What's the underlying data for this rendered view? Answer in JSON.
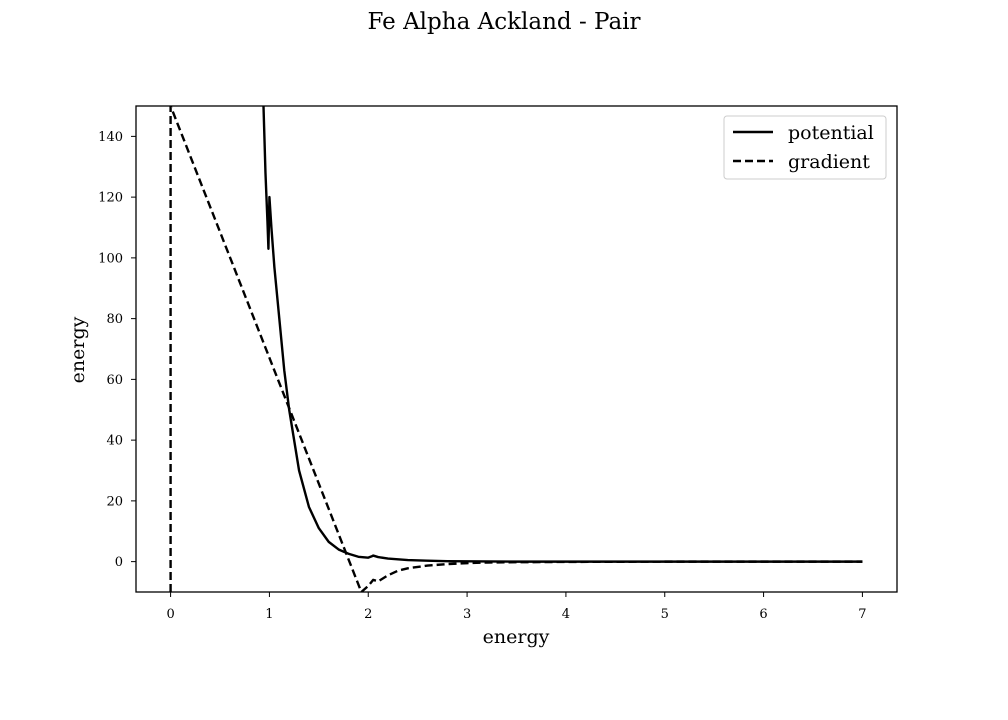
{
  "chart_data": {
    "type": "line",
    "title": "Fe Alpha Ackland - Pair",
    "xlabel": "energy",
    "ylabel": "energy",
    "xlim": [
      -0.35,
      7.35
    ],
    "ylim": [
      -10,
      150
    ],
    "xticks": [
      "0",
      "1",
      "2",
      "3",
      "4",
      "5",
      "6",
      "7"
    ],
    "yticks": [
      "0",
      "20",
      "40",
      "60",
      "80",
      "100",
      "120",
      "140"
    ],
    "legend_position": "top-right",
    "series": [
      {
        "name": "potential",
        "style": "solid",
        "color": "#000000",
        "x": [
          0.94,
          0.96,
          0.98,
          0.99,
          1.0,
          1.02,
          1.05,
          1.1,
          1.15,
          1.2,
          1.3,
          1.4,
          1.5,
          1.6,
          1.7,
          1.8,
          1.9,
          2.0,
          2.04,
          2.05,
          2.1,
          2.2,
          2.4,
          2.6,
          2.8,
          3.0,
          3.5,
          4.0,
          5.0,
          6.0,
          7.0
        ],
        "values": [
          150,
          128,
          112,
          103,
          120,
          110,
          97,
          80,
          63,
          50,
          30,
          18,
          11,
          6.5,
          4,
          2.6,
          1.6,
          1.3,
          1.8,
          2.0,
          1.5,
          1.0,
          0.5,
          0.3,
          0.15,
          0.1,
          0.0,
          0.0,
          0.0,
          0.0,
          0.0
        ]
      },
      {
        "name": "gradient",
        "style": "dashed",
        "color": "#000000",
        "x": [
          0.0,
          0.0,
          1.93,
          2.0,
          2.05,
          2.1,
          2.2,
          2.3,
          2.4,
          2.6,
          2.8,
          3.0,
          3.2,
          3.5,
          4.0,
          5.0,
          6.0,
          7.0
        ],
        "values": [
          -10,
          150,
          -10,
          -8,
          -6,
          -6.5,
          -4.5,
          -3,
          -2.2,
          -1.3,
          -0.8,
          -0.5,
          -0.3,
          -0.2,
          -0.1,
          0.0,
          0.0,
          0.0
        ]
      }
    ]
  }
}
